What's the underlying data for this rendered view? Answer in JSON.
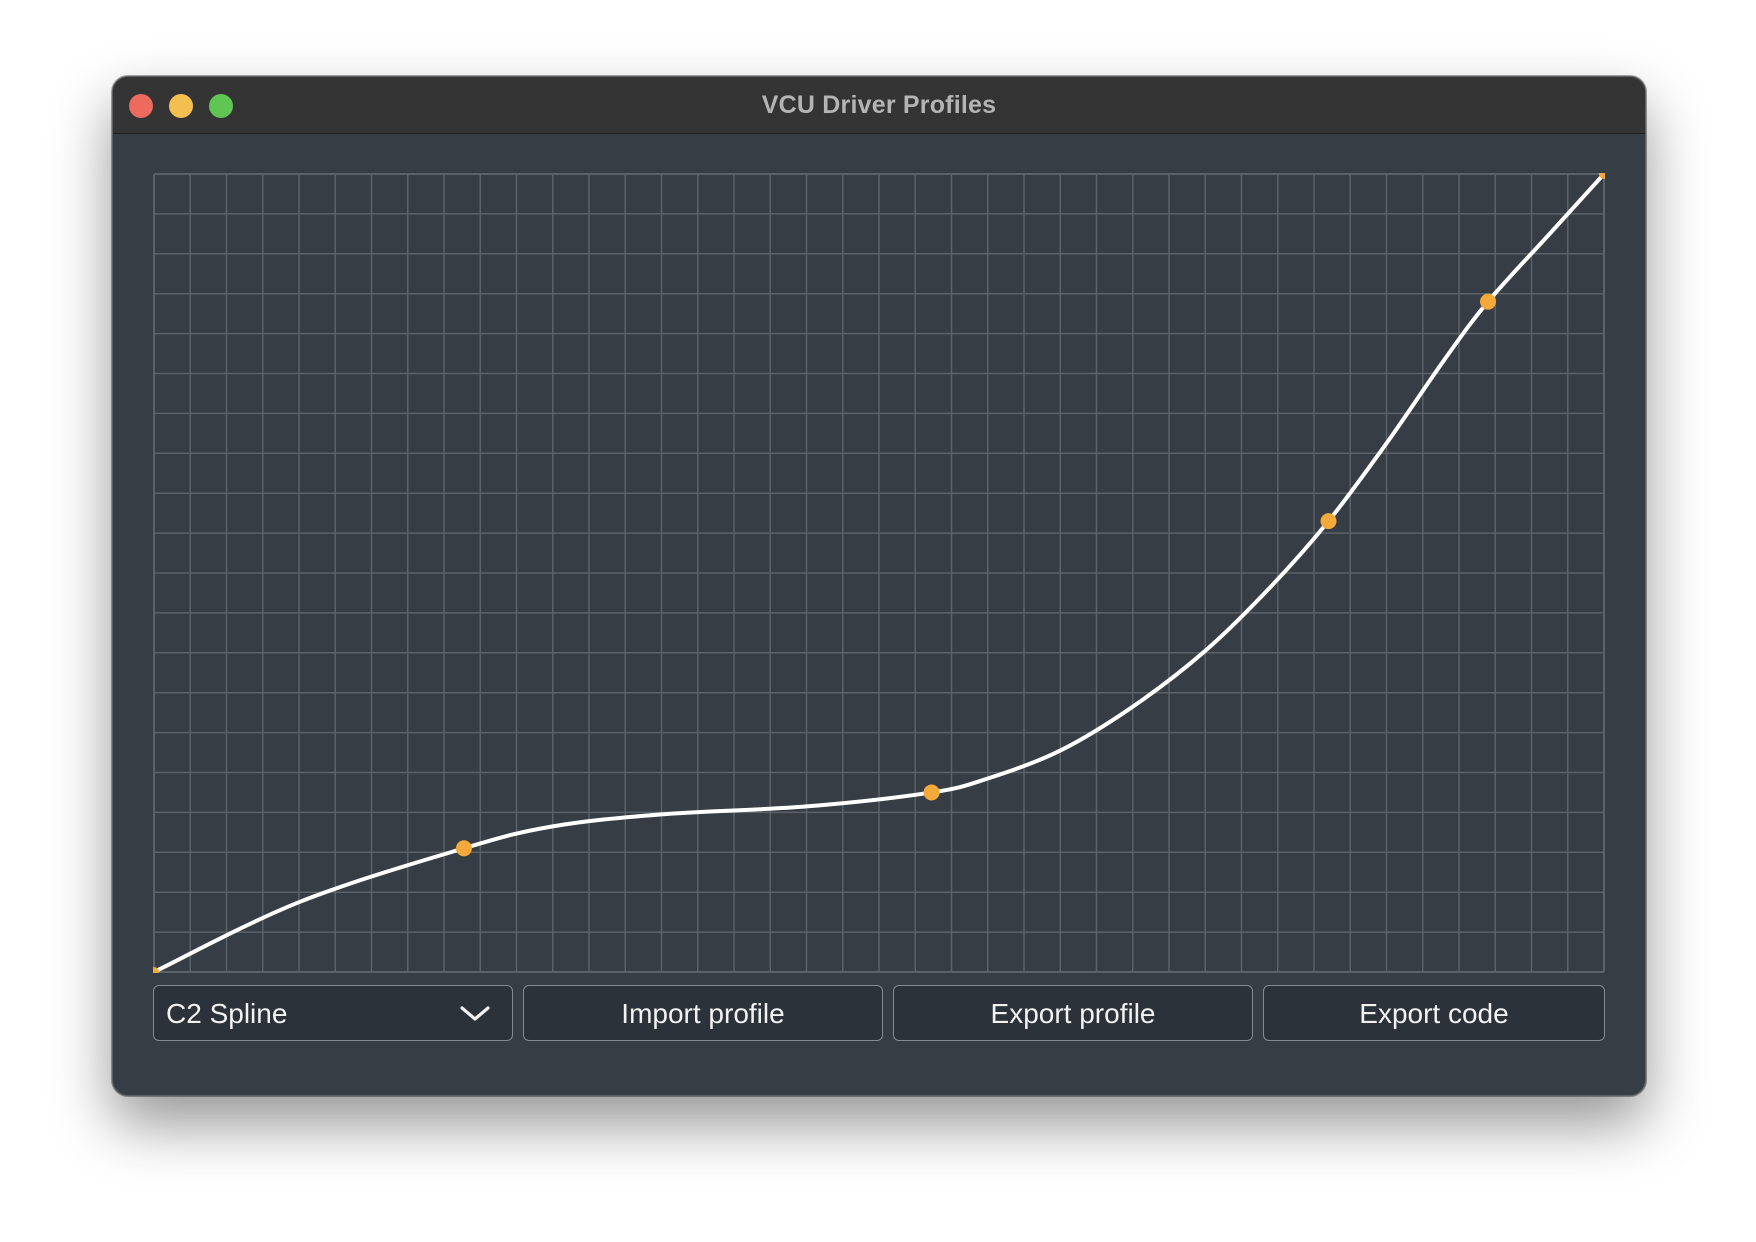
{
  "window": {
    "title": "VCU Driver Profiles"
  },
  "controls": {
    "interpolation_select": {
      "value": "C2 Spline",
      "icon": "chevron-down-icon"
    },
    "import_label": "Import profile",
    "export_label": "Export profile",
    "export_code_label": "Export code"
  },
  "colors": {
    "background": "#363d44",
    "grid": "#5b6268",
    "curve": "#ffffff",
    "control_points": "#f5a93a"
  },
  "chart_data": {
    "type": "line",
    "xlim": [
      0,
      40
    ],
    "ylim": [
      0,
      20
    ],
    "grid": true,
    "grid_columns": 40,
    "grid_rows": 20,
    "legend": "none",
    "control_points": [
      {
        "x": 0,
        "y": 0
      },
      {
        "x": 8.55,
        "y": 3.1
      },
      {
        "x": 21.45,
        "y": 4.5
      },
      {
        "x": 32.4,
        "y": 11.3
      },
      {
        "x": 36.8,
        "y": 16.8
      },
      {
        "x": 40,
        "y": 20
      }
    ],
    "curve": {
      "x": [
        0,
        4,
        8.55,
        11,
        14,
        18,
        21.45,
        23,
        25,
        27,
        29,
        30.8,
        32.4,
        34,
        35.6,
        36.8,
        38.5,
        40
      ],
      "y": [
        0,
        1.75,
        3.1,
        3.65,
        3.95,
        4.15,
        4.5,
        4.85,
        5.55,
        6.65,
        8.05,
        9.65,
        11.3,
        13.25,
        15.35,
        16.8,
        18.5,
        20
      ]
    }
  }
}
